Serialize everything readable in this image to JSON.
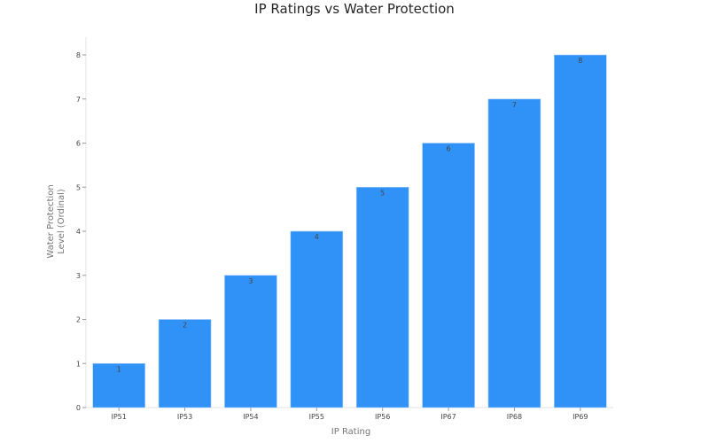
{
  "chart_data": {
    "type": "bar",
    "title": "IP Ratings vs Water Protection",
    "xlabel": "IP Rating",
    "ylabel": "Water Protection Level (Ordinal)",
    "ylabel_lines": [
      "Water Protection",
      "Level (Ordinal)"
    ],
    "categories": [
      "IP51",
      "IP53",
      "IP54",
      "IP55",
      "IP56",
      "IP67",
      "IP68",
      "IP69"
    ],
    "values": [
      1,
      2,
      3,
      4,
      5,
      6,
      7,
      8
    ],
    "data_labels": [
      "1",
      "2",
      "3",
      "4",
      "5",
      "6",
      "7",
      "8"
    ],
    "ylim": [
      0,
      8.4
    ],
    "yticks": [
      0,
      1,
      2,
      3,
      4,
      5,
      6,
      7,
      8
    ],
    "grid": false,
    "legend": null,
    "bar_color": "#3092f6"
  }
}
